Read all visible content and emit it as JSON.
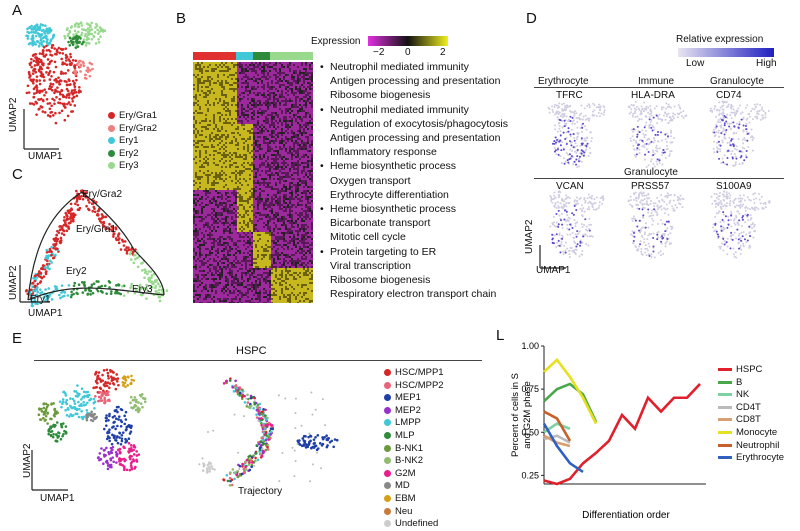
{
  "panels": {
    "A": "A",
    "B": "B",
    "C": "C",
    "D": "D",
    "E": "E",
    "L": "L"
  },
  "panelA": {
    "xlabel": "UMAP1",
    "ylabel": "UMAP2",
    "legend": [
      {
        "name": "Ery/Gra1",
        "color": "#d62728"
      },
      {
        "name": "Ery/Gra2",
        "color": "#f08080"
      },
      {
        "name": "Ery1",
        "color": "#40c8d8"
      },
      {
        "name": "Ery2",
        "color": "#2e8b3a"
      },
      {
        "name": "Ery3",
        "color": "#98d98e"
      }
    ]
  },
  "panelB": {
    "expression_label": "Expression",
    "scale_ticks": [
      "−2",
      "0",
      "2"
    ],
    "bar_colors": [
      "#e03030",
      "#40c8d8",
      "#2e8b3a",
      "#98d98e"
    ],
    "go_groups": [
      [
        "Neutrophil mediated immunity",
        "Antigen processing and presentation",
        "Ribosome biogenesis"
      ],
      [
        "Neutrophil mediated immunity",
        "Regulation of exocytosis/phagocytosis",
        "Antigen processing and presentation",
        "Inflammatory response"
      ],
      [
        "Heme biosynthetic process",
        "Oxygen transport",
        "Erythrocyte differentiation"
      ],
      [
        "Heme biosynthetic process",
        "Bicarbonate transport",
        "Mitotic cell cycle"
      ],
      [
        "Protein targeting to ER",
        "Viral transcription",
        "Ribosome biogenesis",
        "Respiratory electron transport chain"
      ]
    ]
  },
  "panelC": {
    "xlabel": "UMAP1",
    "ylabel": "UMAP2",
    "labels": [
      "Ery/Gra2",
      "Ery/Gra1",
      "Ery2",
      "Ery3",
      "Ery1"
    ]
  },
  "panelD": {
    "scale_title": "Relative expression",
    "low": "Low",
    "high": "High",
    "categories_top": [
      "Erythrocyte",
      "Immune",
      "Granulocyte"
    ],
    "genes_top": [
      "TFRC",
      "HLA-DRA",
      "CD74"
    ],
    "category_bottom": "Granulocyte",
    "genes_bottom": [
      "VCAN",
      "PRSS57",
      "S100A9"
    ],
    "xlabel": "UMAP1",
    "ylabel": "UMAP2"
  },
  "panelE": {
    "title": "HSPC",
    "xlabel": "UMAP1",
    "ylabel": "UMAP2",
    "trajectory_label": "Trajectory",
    "legend": [
      {
        "name": "HSC/MPP1",
        "color": "#d62728"
      },
      {
        "name": "HSC/MPP2",
        "color": "#e8657a"
      },
      {
        "name": "MEP1",
        "color": "#1f3fa8"
      },
      {
        "name": "MEP2",
        "color": "#9932cc"
      },
      {
        "name": "LMPP",
        "color": "#40c8d8"
      },
      {
        "name": "MLP",
        "color": "#2e8b3a"
      },
      {
        "name": "B-NK1",
        "color": "#6a9a3a"
      },
      {
        "name": "B-NK2",
        "color": "#8fbc6f"
      },
      {
        "name": "G2M",
        "color": "#e91e8c"
      },
      {
        "name": "MD",
        "color": "#888888"
      },
      {
        "name": "EBM",
        "color": "#d4a017"
      },
      {
        "name": "Neu",
        "color": "#c97a3a"
      },
      {
        "name": "Undefined",
        "color": "#cccccc"
      }
    ]
  },
  "chart_data": {
    "type": "line",
    "title": "",
    "xlabel": "Differentiation order",
    "ylabel": "Percent of cells in S and G2M phase",
    "ylim": [
      0.2,
      1.0
    ],
    "yticks": [
      "0.25",
      "0.50",
      "0.75",
      "1.00"
    ],
    "series": [
      {
        "name": "HSPC",
        "color": "#e0202a",
        "x": [
          0,
          1,
          2,
          3,
          4,
          5,
          6,
          7,
          8,
          9,
          10,
          11,
          12
        ],
        "values": [
          0.22,
          0.2,
          0.23,
          0.32,
          0.38,
          0.45,
          0.6,
          0.52,
          0.7,
          0.62,
          0.7,
          0.7,
          0.78
        ]
      },
      {
        "name": "B",
        "color": "#4aa84a",
        "x": [
          0,
          1,
          2,
          3,
          4
        ],
        "values": [
          0.68,
          0.75,
          0.78,
          0.72,
          0.56
        ]
      },
      {
        "name": "NK",
        "color": "#7ed1a0",
        "x": [
          0,
          1,
          2
        ],
        "values": [
          0.5,
          0.55,
          0.52
        ]
      },
      {
        "name": "CD4T",
        "color": "#bbbbbb",
        "x": [
          0,
          1,
          2
        ],
        "values": [
          0.46,
          0.48,
          0.44
        ]
      },
      {
        "name": "CD8T",
        "color": "#d8a070",
        "x": [
          0,
          1,
          2
        ],
        "values": [
          0.48,
          0.44,
          0.42
        ]
      },
      {
        "name": "Monocyte",
        "color": "#e6e020",
        "x": [
          0,
          1,
          2,
          3,
          4
        ],
        "values": [
          0.85,
          0.92,
          0.82,
          0.7,
          0.55
        ]
      },
      {
        "name": "Neutrophil",
        "color": "#c8602a",
        "x": [
          0,
          1,
          2
        ],
        "values": [
          0.62,
          0.58,
          0.45
        ]
      },
      {
        "name": "Erythrocyte",
        "color": "#3060c0",
        "x": [
          0,
          1,
          2,
          3
        ],
        "values": [
          0.55,
          0.42,
          0.32,
          0.27
        ]
      }
    ]
  }
}
